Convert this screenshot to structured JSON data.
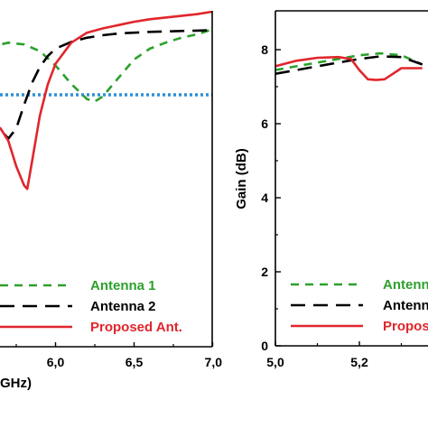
{
  "colors": {
    "antenna1": "#2ca02c",
    "antenna2": "#000000",
    "proposed": "#e0262c",
    "reference": "#2f8fd8"
  },
  "chart_data": [
    {
      "type": "line",
      "xlabel": "GHz)",
      "ylabel": "",
      "xlim": [
        5.0,
        7.0
      ],
      "ylim": [
        -40,
        0
      ],
      "x_ticks": [
        "6,0",
        "6,5",
        "7,0"
      ],
      "x_tick_values": [
        6.0,
        6.5,
        7.0
      ],
      "grid": false,
      "legend_position": "bottom-right",
      "reference_line": {
        "y": -10,
        "style": "dotted"
      },
      "series": [
        {
          "name": "Antenna 1",
          "style": "dashed",
          "x": [
            5.5,
            5.6,
            5.7,
            5.8,
            5.9,
            6.0,
            6.1,
            6.2,
            6.25,
            6.3,
            6.4,
            6.5,
            6.6,
            6.7,
            6.8,
            6.9,
            7.0
          ],
          "y": [
            -5.5,
            -4.2,
            -3.8,
            -4.0,
            -4.8,
            -6.5,
            -8.7,
            -10.5,
            -10.8,
            -10.2,
            -8.0,
            -5.8,
            -4.5,
            -3.8,
            -3.2,
            -2.8,
            -2.2
          ]
        },
        {
          "name": "Antenna 2",
          "style": "long-dash",
          "x": [
            5.55,
            5.6,
            5.65,
            5.7,
            5.75,
            5.8,
            5.85,
            5.9,
            5.95,
            6.0,
            6.1,
            6.2,
            6.3,
            6.4,
            6.5,
            6.6,
            6.7,
            6.8,
            6.9,
            7.0
          ],
          "y": [
            -13.5,
            -13.6,
            -14.2,
            -15.2,
            -14.0,
            -11.2,
            -8.6,
            -6.7,
            -5.4,
            -4.5,
            -3.7,
            -3.2,
            -2.9,
            -2.7,
            -2.6,
            -2.5,
            -2.45,
            -2.4,
            -2.35,
            -2.3
          ]
        },
        {
          "name": "Proposed Ant.",
          "style": "solid",
          "x": [
            5.55,
            5.6,
            5.65,
            5.7,
            5.75,
            5.8,
            5.82,
            5.85,
            5.9,
            5.95,
            6.0,
            6.1,
            6.2,
            6.3,
            6.4,
            6.5,
            6.6,
            6.7,
            6.8,
            6.9,
            7.0
          ],
          "y": [
            -13.2,
            -13.6,
            -14.0,
            -15.5,
            -18.5,
            -20.8,
            -21.2,
            -18.0,
            -12.5,
            -8.8,
            -6.3,
            -3.8,
            -2.6,
            -2.1,
            -1.7,
            -1.3,
            -1.0,
            -0.8,
            -0.6,
            -0.4,
            -0.1
          ]
        }
      ]
    },
    {
      "type": "line",
      "xlabel": "",
      "ylabel": "Gain (dB)",
      "xlim": [
        5.0,
        5.4
      ],
      "ylim": [
        0,
        9
      ],
      "x_ticks": [
        "5,0",
        "5,2"
      ],
      "x_tick_values": [
        5.0,
        5.2
      ],
      "y_ticks": [
        "0",
        "2",
        "4",
        "6",
        "8"
      ],
      "y_tick_values": [
        0,
        2,
        4,
        6,
        8
      ],
      "grid": false,
      "legend_position": "bottom-right",
      "series": [
        {
          "name": "Antenna 1",
          "style": "dashed",
          "x": [
            5.0,
            5.05,
            5.1,
            5.15,
            5.2,
            5.25,
            5.3,
            5.35
          ],
          "y": [
            7.45,
            7.55,
            7.65,
            7.75,
            7.85,
            7.9,
            7.85,
            7.6
          ]
        },
        {
          "name": "Antenna 2",
          "style": "long-dash",
          "x": [
            5.0,
            5.05,
            5.1,
            5.15,
            5.2,
            5.25,
            5.3,
            5.35
          ],
          "y": [
            7.35,
            7.45,
            7.55,
            7.65,
            7.75,
            7.82,
            7.8,
            7.6
          ]
        },
        {
          "name": "Proposed Ant.",
          "style": "solid",
          "x": [
            5.0,
            5.05,
            5.1,
            5.15,
            5.18,
            5.2,
            5.22,
            5.24,
            5.26,
            5.28,
            5.3,
            5.32,
            5.35
          ],
          "y": [
            7.55,
            7.7,
            7.78,
            7.8,
            7.75,
            7.45,
            7.2,
            7.18,
            7.2,
            7.35,
            7.5,
            7.5,
            7.5
          ]
        }
      ]
    }
  ],
  "legend_left": [
    "Antenna 1",
    "Antenna 2",
    "Proposed Ant."
  ],
  "legend_right": [
    "Antenn",
    "Antenn",
    "Propos"
  ]
}
